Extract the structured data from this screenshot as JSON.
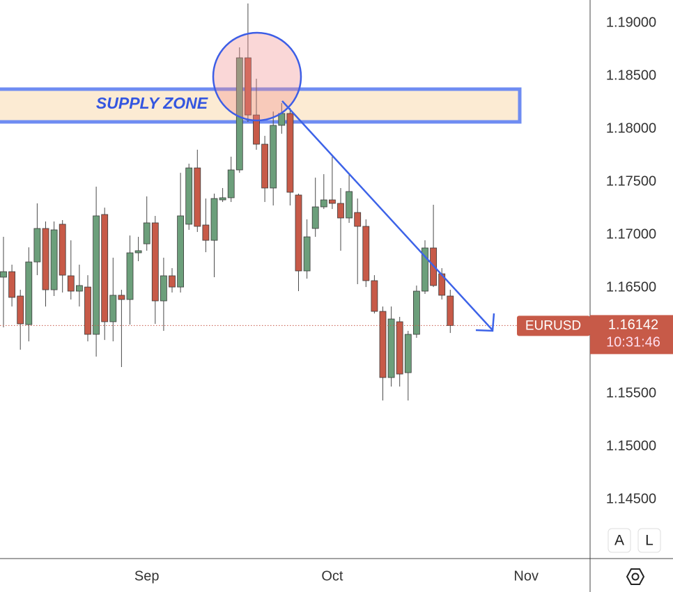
{
  "chart_data": {
    "type": "candlestick",
    "symbol": "EURUSD",
    "categories": [
      null,
      null,
      null,
      null,
      null,
      null,
      null,
      null,
      null,
      null,
      null,
      null,
      null,
      null,
      null,
      null,
      null,
      null,
      null,
      null,
      null,
      null,
      null,
      null,
      null,
      null,
      null,
      null,
      null,
      null,
      null,
      null,
      null,
      null,
      null,
      null,
      null,
      null,
      null,
      null,
      null,
      null,
      null,
      null,
      null,
      null,
      null,
      null,
      null,
      null,
      null,
      null,
      null,
      null
    ],
    "open": [
      1.16599,
      1.16651,
      1.16421,
      1.16151,
      1.16743,
      1.17059,
      1.1648,
      1.17099,
      1.16612,
      1.16467,
      1.16506,
      1.16059,
      1.17191,
      1.16178,
      1.16428,
      1.16388,
      1.16829,
      1.16914,
      1.17112,
      1.16375,
      1.16612,
      1.16506,
      1.17099,
      1.17631,
      1.17092,
      1.16947,
      1.17329,
      1.17349,
      1.17612,
      1.18671,
      1.18131,
      1.17855,
      1.17441,
      1.18033,
      1.18145,
      1.17375,
      1.16658,
      1.17059,
      1.17263,
      1.17329,
      1.17296,
      1.17158,
      1.1721,
      1.17079,
      1.16566,
      1.16276,
      1.15651,
      1.16178,
      1.15697,
      1.16059,
      1.16467,
      1.16875,
      1.16631,
      1.16421
    ],
    "high": [
      1.1698,
      1.16717,
      1.1648,
      1.16881,
      1.17296,
      1.17125,
      1.17125,
      1.17138,
      1.16947,
      1.16717,
      1.16618,
      1.17454,
      1.17256,
      1.16783,
      1.1648,
      1.16993,
      1.1698,
      1.17362,
      1.17178,
      1.16783,
      1.16684,
      1.17585,
      1.17671,
      1.17803,
      1.17342,
      1.17388,
      1.17441,
      1.17737,
      1.1877,
      1.19184,
      1.18474,
      1.17934,
      1.18164,
      1.18243,
      1.18197,
      1.17388,
      1.17145,
      1.17539,
      1.17572,
      1.17737,
      1.17441,
      1.17572,
      1.17342,
      1.17145,
      1.16618,
      1.16322,
      1.16322,
      1.16224,
      1.16092,
      1.1652,
      1.16947,
      1.17283,
      1.16684,
      1.1648
    ],
    "low": [
      1.16125,
      1.16322,
      1.15914,
      1.15993,
      1.16618,
      1.16322,
      1.16421,
      1.16454,
      1.16388,
      1.16322,
      1.15993,
      1.15849,
      1.16006,
      1.15993,
      1.1575,
      1.16151,
      1.1675,
      1.16849,
      1.16158,
      1.16092,
      1.16454,
      1.16454,
      1.17046,
      1.17026,
      1.16835,
      1.16599,
      1.17309,
      1.17309,
      1.17585,
      1.18066,
      1.17803,
      1.17309,
      1.17276,
      1.17954,
      1.17276,
      1.16467,
      1.16585,
      1.1698,
      1.17243,
      1.17243,
      1.16849,
      1.17112,
      1.16533,
      1.16506,
      1.16256,
      1.15434,
      1.15566,
      1.15566,
      1.15434,
      1.16026,
      1.16441,
      1.16506,
      1.16388,
      1.16072
    ],
    "close": [
      1.16651,
      1.16408,
      1.16158,
      1.16743,
      1.17059,
      1.1648,
      1.17046,
      1.16618,
      1.16467,
      1.1652,
      1.16059,
      1.17178,
      1.16178,
      1.16428,
      1.16388,
      1.16829,
      1.16849,
      1.17112,
      1.16375,
      1.16612,
      1.16506,
      1.17178,
      1.17631,
      1.17079,
      1.16947,
      1.17342,
      1.17349,
      1.17612,
      1.18671,
      1.18131,
      1.17855,
      1.17441,
      1.18033,
      1.18145,
      1.17401,
      1.16658,
      1.1698,
      1.17263,
      1.17329,
      1.17296,
      1.17158,
      1.17408,
      1.17079,
      1.16566,
      1.16276,
      1.15651,
      1.16204,
      1.15684,
      1.16059,
      1.16467,
      1.16875,
      1.1652,
      1.16428,
      1.16142
    ],
    "up_color": "#6c9f7b",
    "down_color": "#c75a48",
    "ylim": [
      1.13941,
      1.19217
    ],
    "yticks": [
      {
        "value": 1.145,
        "label": "1.14500"
      },
      {
        "value": 1.15,
        "label": "1.15000"
      },
      {
        "value": 1.155,
        "label": "1.15500"
      },
      {
        "value": 1.16,
        "label": "1.16000"
      },
      {
        "value": 1.165,
        "label": "1.16500"
      },
      {
        "value": 1.17,
        "label": "1.17000"
      },
      {
        "value": 1.175,
        "label": "1.17500"
      },
      {
        "value": 1.18,
        "label": "1.18000"
      },
      {
        "value": 1.185,
        "label": "1.18500"
      },
      {
        "value": 1.19,
        "label": "1.19000"
      }
    ],
    "xticks": [
      {
        "value": 17,
        "label": "Sep"
      },
      {
        "value": 39,
        "label": "Oct"
      },
      {
        "value": 62,
        "label": "Nov"
      }
    ],
    "last_price": 1.16142,
    "countdown": "10:31:46",
    "annotations": [
      "SUPPLY ZONE"
    ],
    "buttons": [
      "A",
      "L"
    ],
    "grid": false
  }
}
